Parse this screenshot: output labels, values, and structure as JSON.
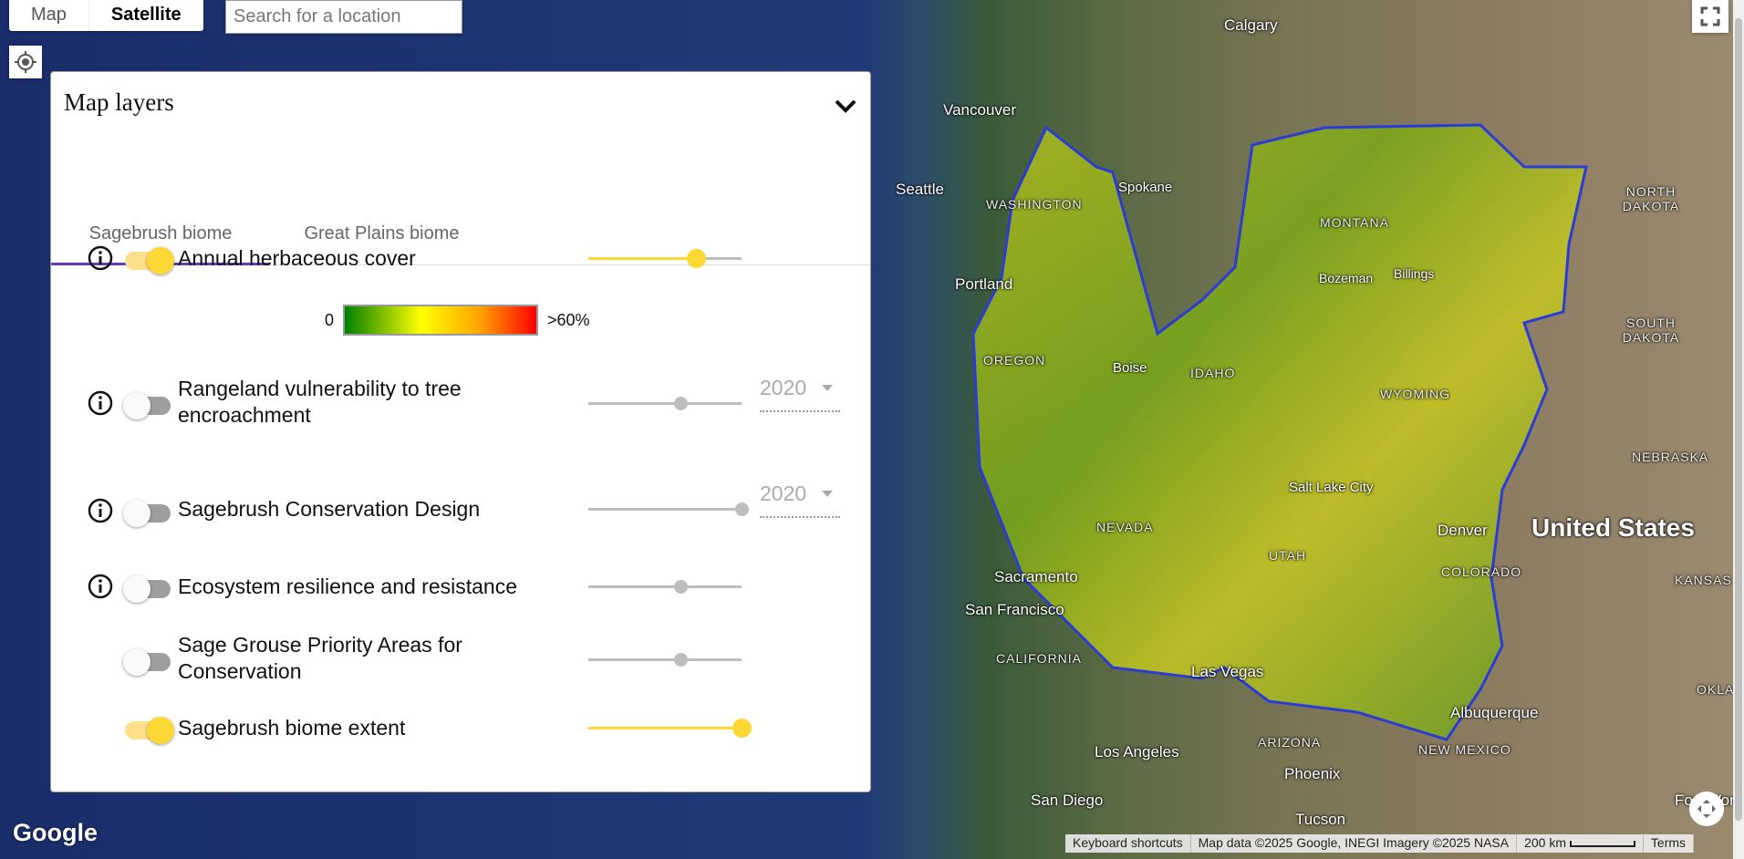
{
  "map_type": {
    "options": [
      "Map",
      "Satellite"
    ],
    "selected": "Satellite"
  },
  "search": {
    "placeholder": "Search for a location"
  },
  "panel": {
    "title": "Map layers",
    "tabs": [
      {
        "label": "Sagebrush biome",
        "active": true
      },
      {
        "label": "Great Plains biome",
        "active": false
      }
    ],
    "layers": [
      {
        "label": "Annual herbaceous cover",
        "on": true,
        "info": true,
        "opacity": 0.7
      },
      {
        "label": "Rangeland vulnerability to tree encroachment",
        "on": false,
        "info": true,
        "opacity": 0.6,
        "year": "2020"
      },
      {
        "label": "Sagebrush Conservation Design",
        "on": false,
        "info": true,
        "opacity": 1.0,
        "year": "2020"
      },
      {
        "label": "Ecosystem resilience and resistance",
        "on": false,
        "info": true,
        "opacity": 0.6
      },
      {
        "label": "Sage Grouse Priority Areas for Conservation",
        "on": false,
        "info": false,
        "opacity": 0.6
      },
      {
        "label": "Sagebrush biome extent",
        "on": true,
        "info": false,
        "opacity": 1.0
      }
    ],
    "legend": {
      "min": "0",
      "max": ">60%",
      "colors": [
        "#008000",
        "#ffff00",
        "#ffa500",
        "#ff0000"
      ]
    }
  },
  "map_labels": {
    "cities": [
      "Calgary",
      "Vancouver",
      "Seattle",
      "Spokane",
      "Portland",
      "Boise",
      "Bozeman",
      "Billings",
      "Salt Lake City",
      "Denver",
      "Sacramento",
      "San Francisco",
      "Las Vegas",
      "Albuquerque",
      "Los Angeles",
      "Phoenix",
      "San Diego",
      "Tucson",
      "Fort Worth"
    ],
    "states": [
      "WASHINGTON",
      "OREGON",
      "IDAHO",
      "MONTANA",
      "NORTH DAKOTA",
      "SOUTH DAKOTA",
      "WYOMING",
      "NEBRASKA",
      "NEVADA",
      "UTAH",
      "COLORADO",
      "KANSAS",
      "CALIFORNIA",
      "ARIZONA",
      "NEW MEXICO",
      "OKLA"
    ],
    "country": "United States"
  },
  "footer": {
    "logo": "Google",
    "keyboard": "Keyboard shortcuts",
    "attribution": "Map data ©2025 Google, INEGI Imagery ©2025 NASA",
    "scale": "200 km",
    "terms": "Terms"
  },
  "colors": {
    "accent": "#fdd835",
    "tab_underline": "#673ab7",
    "biome_outline": "#2b3bd6"
  }
}
